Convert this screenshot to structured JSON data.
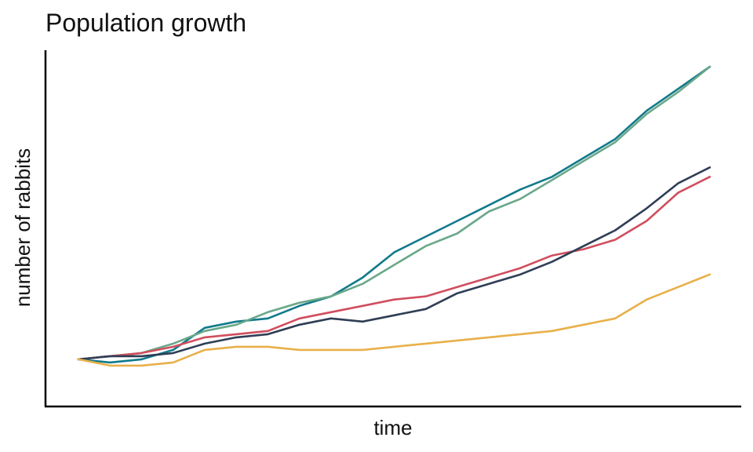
{
  "chart_data": {
    "type": "line",
    "title": "Population growth",
    "xlabel": "time",
    "ylabel": "number of rabbits",
    "x_ticks_shown": false,
    "y_ticks_shown": false,
    "grid": false,
    "legend": "none",
    "xlim": [
      0,
      100
    ],
    "ylim": [
      0,
      100
    ],
    "x": [
      0,
      5,
      10,
      15,
      20,
      25,
      30,
      35,
      40,
      45,
      50,
      55,
      60,
      65,
      70,
      75,
      80,
      85,
      90,
      95,
      100
    ],
    "series": [
      {
        "color": "#117a8b",
        "values": [
          7,
          6,
          7,
          10,
          17,
          19,
          20,
          24,
          27,
          33,
          41,
          46,
          51,
          56,
          61,
          65,
          71,
          77,
          86,
          93,
          100
        ]
      },
      {
        "color": "#6aa88a",
        "values": [
          7,
          8,
          9,
          12,
          16,
          18,
          22,
          25,
          27,
          31,
          37,
          43,
          47,
          54,
          58,
          64,
          70,
          76,
          85,
          92,
          100
        ]
      },
      {
        "color": "#d04e5e",
        "values": [
          7,
          8,
          9,
          11,
          14,
          15,
          16,
          20,
          22,
          24,
          26,
          27,
          30,
          33,
          36,
          40,
          42,
          45,
          51,
          60,
          65
        ]
      },
      {
        "color": "#2f3e55",
        "values": [
          7,
          8,
          8,
          9,
          12,
          14,
          15,
          18,
          20,
          19,
          21,
          23,
          28,
          31,
          34,
          38,
          43,
          48,
          55,
          63,
          68
        ]
      },
      {
        "color": "#e8b04a",
        "values": [
          7,
          5,
          5,
          6,
          10,
          11,
          11,
          10,
          10,
          10,
          11,
          12,
          13,
          14,
          15,
          16,
          18,
          20,
          26,
          30,
          34
        ]
      }
    ]
  }
}
